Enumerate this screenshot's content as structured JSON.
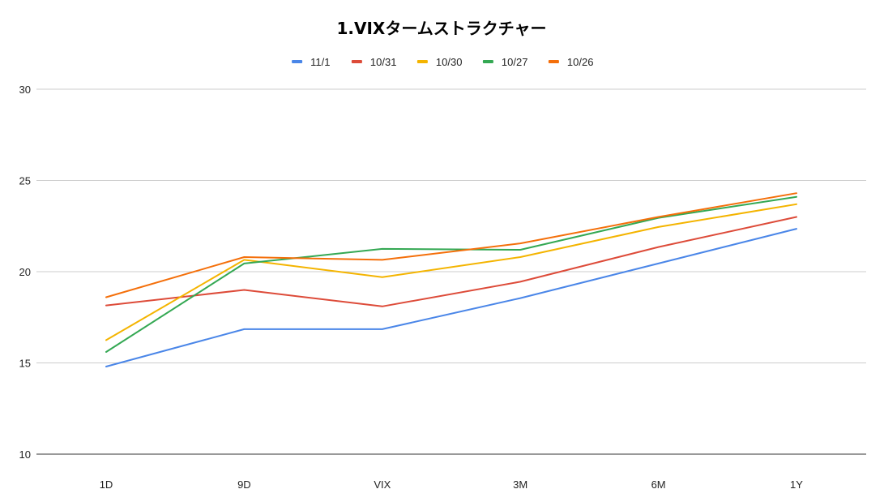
{
  "chart_data": {
    "type": "line",
    "title": "1.VIXタームストラクチャー",
    "xlabel": "",
    "ylabel": "",
    "categories": [
      "1D",
      "9D",
      "VIX",
      "3M",
      "6M",
      "1Y"
    ],
    "ylim": [
      10,
      30
    ],
    "yticks": [
      "10",
      "15",
      "20",
      "25",
      "30"
    ],
    "grid": true,
    "legend_position": "top",
    "series": [
      {
        "name": "11/1",
        "color": "#4a86e8",
        "values": [
          14.8,
          16.85,
          16.85,
          18.55,
          20.45,
          22.35
        ]
      },
      {
        "name": "10/31",
        "color": "#dd4b39",
        "values": [
          18.15,
          19.0,
          18.1,
          19.45,
          21.35,
          23.0
        ]
      },
      {
        "name": "10/30",
        "color": "#f4b400",
        "values": [
          16.25,
          20.65,
          19.7,
          20.8,
          22.45,
          23.7
        ]
      },
      {
        "name": "10/27",
        "color": "#34a853",
        "values": [
          15.6,
          20.45,
          21.25,
          21.2,
          22.95,
          24.1
        ]
      },
      {
        "name": "10/26",
        "color": "#f46f0a",
        "values": [
          18.6,
          20.8,
          20.65,
          21.55,
          23.0,
          24.3
        ]
      }
    ]
  }
}
